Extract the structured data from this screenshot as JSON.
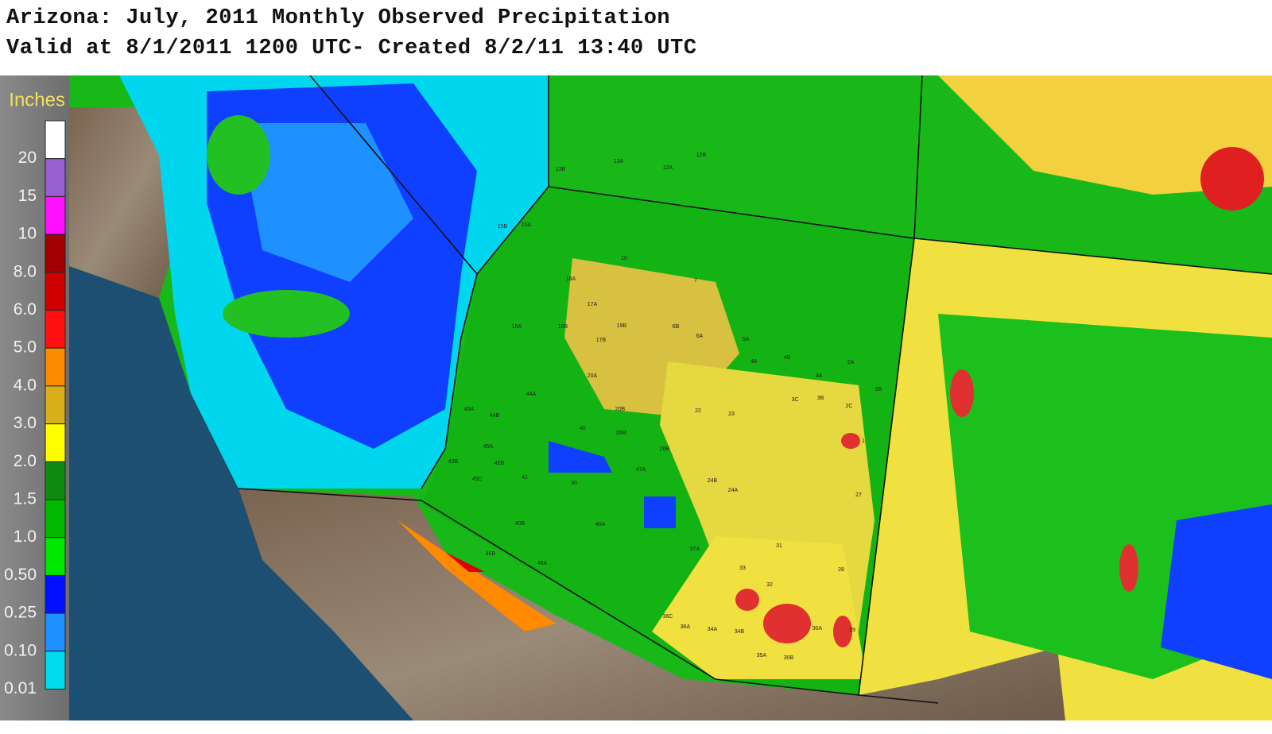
{
  "header": {
    "title": "Arizona: July, 2011 Monthly Observed Precipitation",
    "subtitle": "Valid at 8/1/2011 1200 UTC- Created 8/2/11 13:40 UTC"
  },
  "legend": {
    "unit": "Inches",
    "labels": [
      "20",
      "15",
      "10",
      "8.0",
      "6.0",
      "5.0",
      "4.0",
      "3.0",
      "2.0",
      "1.5",
      "1.0",
      "0.50",
      "0.25",
      "0.10",
      "0.01"
    ]
  },
  "zones": [
    "13B",
    "13A",
    "12A",
    "12B",
    "15B",
    "15A",
    "10",
    "18A",
    "17A",
    "19B",
    "16A",
    "18B",
    "17B",
    "7",
    "6B",
    "6A",
    "5A",
    "4A",
    "4B",
    "3A",
    "3B",
    "3C",
    "2C",
    "2B",
    "2A",
    "1",
    "22",
    "23",
    "44A",
    "43A",
    "44B",
    "42",
    "45A",
    "43B",
    "45B",
    "45C",
    "41",
    "30",
    "26M",
    "26B",
    "47A",
    "40B",
    "40A",
    "46B",
    "46A",
    "24B",
    "24A",
    "27",
    "37A",
    "31",
    "33",
    "32",
    "28",
    "36C",
    "36A",
    "34A",
    "34B",
    "30A",
    "29",
    "35A",
    "30B",
    "20A",
    "20B"
  ]
}
